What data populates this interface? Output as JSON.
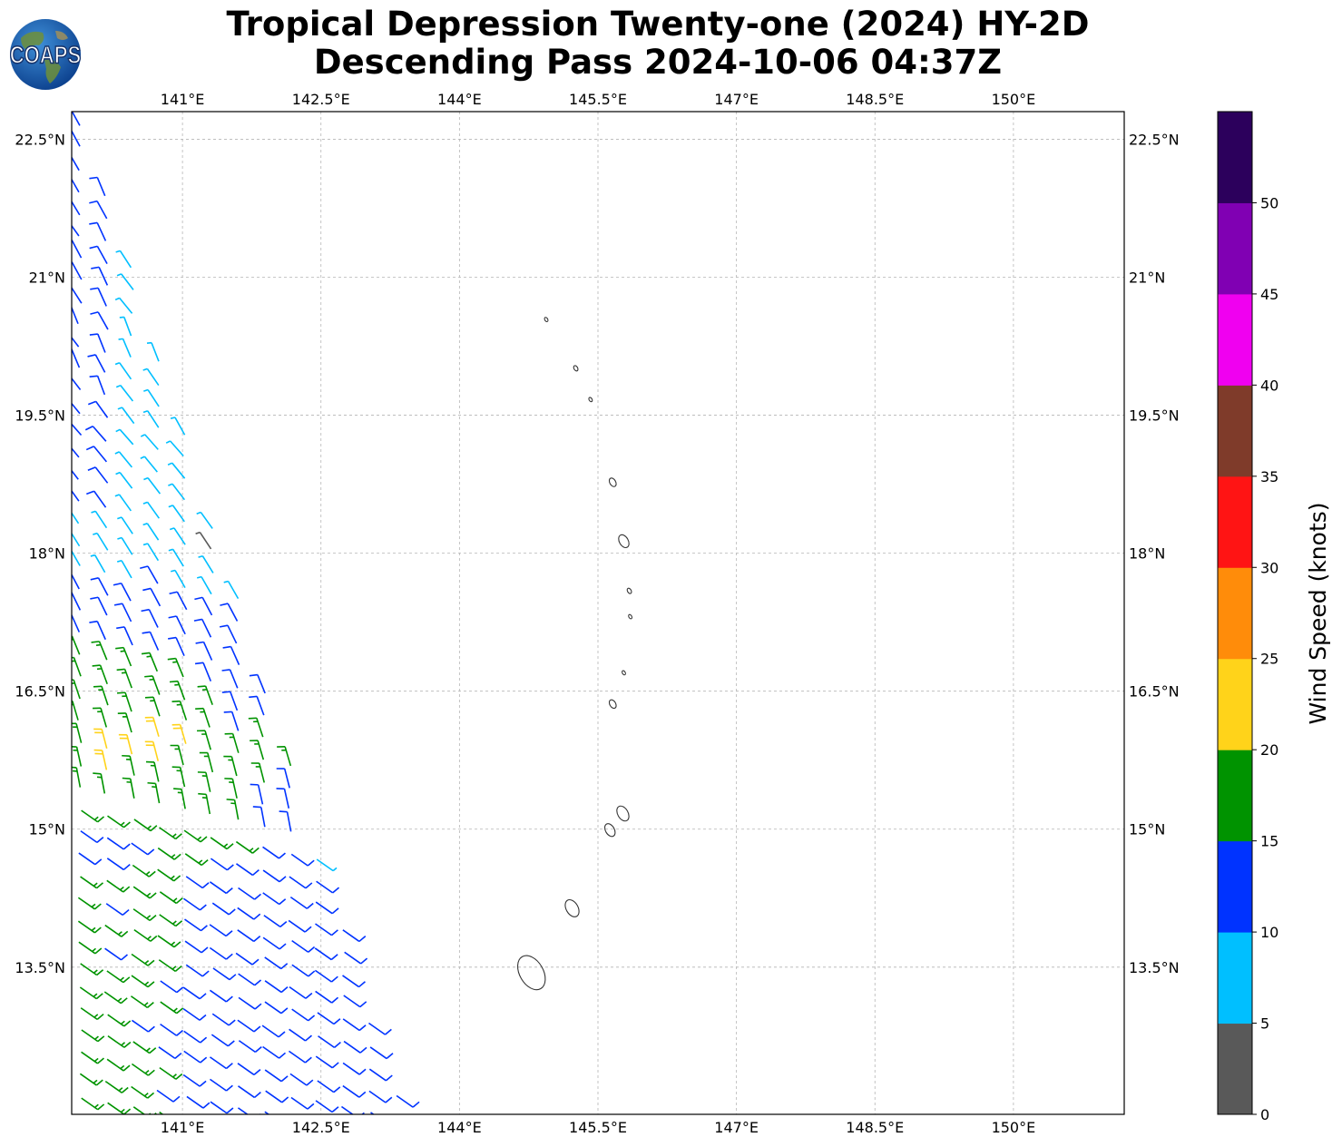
{
  "title": {
    "line1": "Tropical Depression Twenty-one (2024) HY-2D",
    "line2": "Descending Pass 2024-10-06 04:37Z"
  },
  "logo": {
    "text": "COAPS"
  },
  "map": {
    "lon_range": [
      139.8,
      151.2
    ],
    "lat_range": [
      11.9,
      22.8
    ],
    "lon_ticks": [
      {
        "value": 141.0,
        "label": "141°E"
      },
      {
        "value": 142.5,
        "label": "142.5°E"
      },
      {
        "value": 144.0,
        "label": "144°E"
      },
      {
        "value": 145.5,
        "label": "145.5°E"
      },
      {
        "value": 147.0,
        "label": "147°E"
      },
      {
        "value": 148.5,
        "label": "148.5°E"
      },
      {
        "value": 150.0,
        "label": "150°E"
      }
    ],
    "lat_ticks": [
      {
        "value": 22.5,
        "label": "22.5°N"
      },
      {
        "value": 21.0,
        "label": "21°N"
      },
      {
        "value": 19.5,
        "label": "19.5°N"
      },
      {
        "value": 18.0,
        "label": "18°N"
      },
      {
        "value": 16.5,
        "label": "16.5°N"
      },
      {
        "value": 15.0,
        "label": "15°N"
      },
      {
        "value": 13.5,
        "label": "13.5°N"
      }
    ],
    "grid": "dashed gray",
    "islands": [
      {
        "lon": 144.94,
        "lat": 20.54,
        "r": 0.02
      },
      {
        "lon": 145.26,
        "lat": 20.01,
        "r": 0.025
      },
      {
        "lon": 145.42,
        "lat": 19.67,
        "r": 0.02
      },
      {
        "lon": 145.66,
        "lat": 18.77,
        "r": 0.04
      },
      {
        "lon": 145.78,
        "lat": 18.13,
        "r": 0.06
      },
      {
        "lon": 145.84,
        "lat": 17.59,
        "r": 0.025
      },
      {
        "lon": 145.85,
        "lat": 17.31,
        "r": 0.015
      },
      {
        "lon": 145.78,
        "lat": 16.7,
        "r": 0.015
      },
      {
        "lon": 145.66,
        "lat": 16.36,
        "r": 0.04
      },
      {
        "lon": 145.77,
        "lat": 15.17,
        "r": 0.07
      },
      {
        "lon": 145.63,
        "lat": 14.99,
        "r": 0.06
      },
      {
        "lon": 145.22,
        "lat": 14.14,
        "r": 0.08
      },
      {
        "lon": 144.78,
        "lat": 13.44,
        "r": 0.16
      }
    ]
  },
  "colorbar": {
    "label": "Wind Speed (knots)",
    "bins": [
      {
        "min": 0,
        "max": 5,
        "color": "#595959"
      },
      {
        "min": 5,
        "max": 10,
        "color": "#00bfff"
      },
      {
        "min": 10,
        "max": 15,
        "color": "#0033ff"
      },
      {
        "min": 15,
        "max": 20,
        "color": "#009300"
      },
      {
        "min": 20,
        "max": 25,
        "color": "#ffd31a"
      },
      {
        "min": 25,
        "max": 30,
        "color": "#ff8c0a"
      },
      {
        "min": 30,
        "max": 35,
        "color": "#ff1414"
      },
      {
        "min": 35,
        "max": 40,
        "color": "#7f3b2a"
      },
      {
        "min": 40,
        "max": 45,
        "color": "#f000f0"
      },
      {
        "min": 45,
        "max": 50,
        "color": "#8000b3"
      },
      {
        "min": 50,
        "max": 55,
        "color": "#2c005c"
      }
    ],
    "ticks": [
      "0",
      "5",
      "10",
      "15",
      "20",
      "25",
      "30",
      "35",
      "40",
      "45",
      "50"
    ]
  }
}
